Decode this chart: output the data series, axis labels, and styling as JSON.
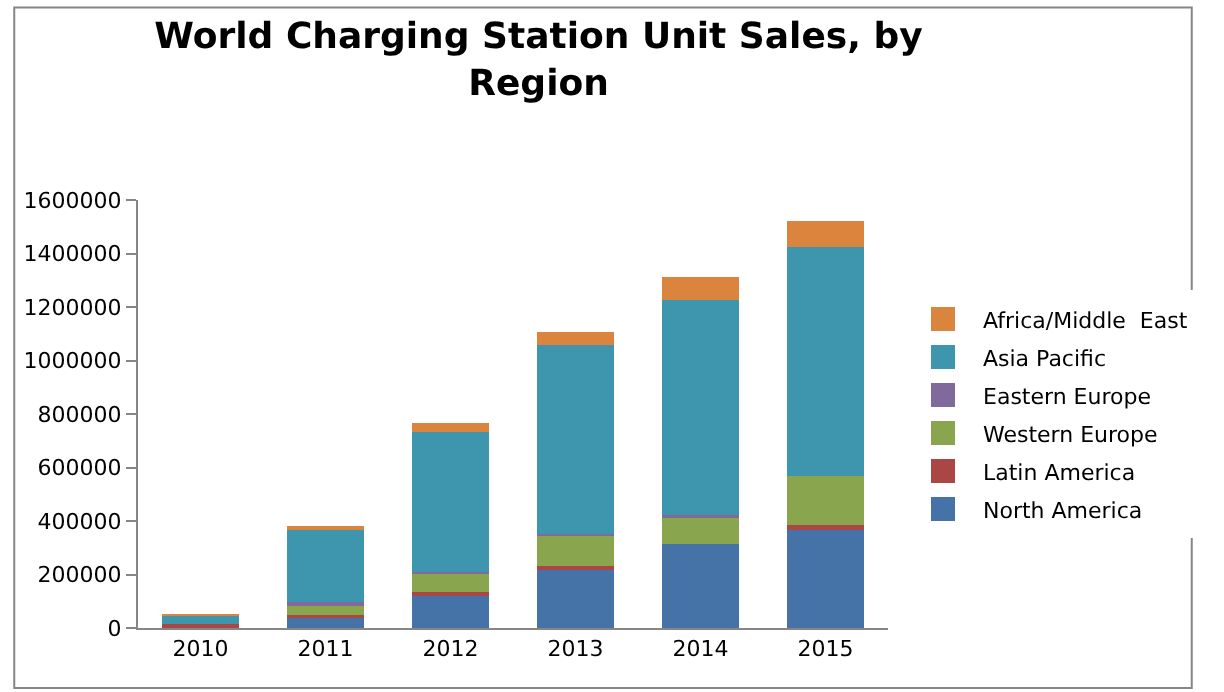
{
  "chart_data": {
    "type": "bar",
    "stacked": true,
    "title": "World Charging Station Unit Sales, by Region",
    "categories": [
      "2010",
      "2011",
      "2012",
      "2013",
      "2014",
      "2015"
    ],
    "series": [
      {
        "name": "North America",
        "color": "#4572a7",
        "values": [
          null,
          39000,
          122000,
          222000,
          314000,
          372000
        ]
      },
      {
        "name": "Latin America",
        "color": "#aa4643",
        "values": [
          15000,
          8000,
          11000,
          11000,
          null,
          14000
        ]
      },
      {
        "name": "Western Europe",
        "color": "#89a54e",
        "values": [
          null,
          42000,
          72000,
          114000,
          100000,
          181000
        ]
      },
      {
        "name": "Eastern Europe",
        "color": "#80699b",
        "values": [
          1000,
          10000,
          3000,
          3000,
          8000,
          null
        ]
      },
      {
        "name": "Asia Pacific",
        "color": "#3d96ae",
        "values": [
          30000,
          272000,
          525000,
          708000,
          803000,
          856000
        ]
      },
      {
        "name": "Africa/Middle  East",
        "color": "#db843d",
        "values": [
          1000,
          11000,
          33000,
          50000,
          89000,
          100000
        ]
      }
    ],
    "ylim": [
      0,
      1600000
    ],
    "yticks": [
      0,
      200000,
      400000,
      600000,
      800000,
      1000000,
      1200000,
      1400000,
      1600000
    ],
    "legend": "right"
  }
}
